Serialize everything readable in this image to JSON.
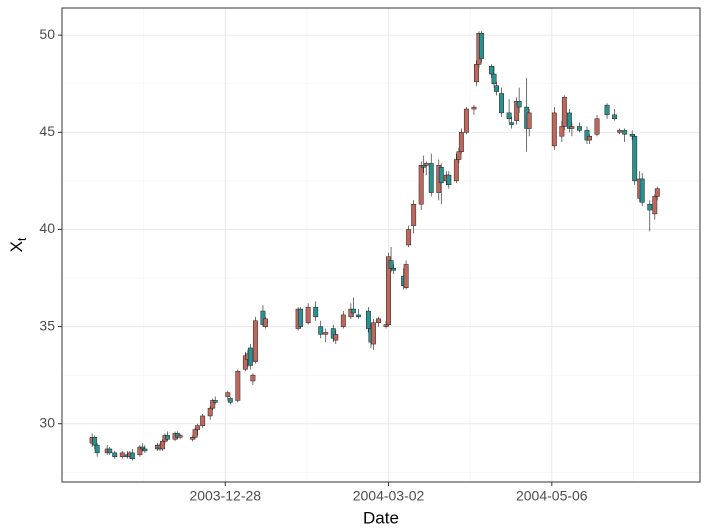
{
  "chart_data": {
    "type": "candlestick",
    "xlabel": "Date",
    "ylabel": "X",
    "ylabel_sub": "t",
    "up_color": "#c0675c",
    "down_color": "#2b9090",
    "grid": true,
    "xlim": [
      "2003-10-24",
      "2004-07-04"
    ],
    "xticks": [
      "2003-12-28",
      "2004-03-02",
      "2004-05-06"
    ],
    "ylim": [
      27.0,
      51.4
    ],
    "yticks": [
      30,
      35,
      40,
      45,
      50
    ],
    "x": [
      "2003-11-05",
      "2003-11-06",
      "2003-11-07",
      "2003-11-11",
      "2003-11-12",
      "2003-11-14",
      "2003-11-17",
      "2003-11-19",
      "2003-11-20",
      "2003-11-21",
      "2003-11-24",
      "2003-11-25",
      "2003-11-26",
      "2003-12-01",
      "2003-12-02",
      "2003-12-03",
      "2003-12-04",
      "2003-12-05",
      "2003-12-08",
      "2003-12-09",
      "2003-12-10",
      "2003-12-15",
      "2003-12-16",
      "2003-12-17",
      "2003-12-19",
      "2003-12-22",
      "2003-12-23",
      "2003-12-24",
      "2003-12-29",
      "2003-12-30",
      "2004-01-02",
      "2004-01-05",
      "2004-01-06",
      "2004-01-07",
      "2004-01-08",
      "2004-01-09",
      "2004-01-12",
      "2004-01-13",
      "2004-01-26",
      "2004-01-27",
      "2004-01-30",
      "2004-02-02",
      "2004-02-04",
      "2004-02-06",
      "2004-02-09",
      "2004-02-10",
      "2004-02-13",
      "2004-02-16",
      "2004-02-17",
      "2004-02-19",
      "2004-02-23",
      "2004-02-24",
      "2004-02-25",
      "2004-02-27",
      "2004-03-01",
      "2004-03-02",
      "2004-03-03",
      "2004-03-04",
      "2004-03-08",
      "2004-03-09",
      "2004-03-10",
      "2004-03-12",
      "2004-03-15",
      "2004-03-16",
      "2004-03-17",
      "2004-03-19",
      "2004-03-22",
      "2004-03-23",
      "2004-03-25",
      "2004-03-26",
      "2004-03-29",
      "2004-03-30",
      "2004-03-31",
      "2004-04-02",
      "2004-04-05",
      "2004-04-06",
      "2004-04-07",
      "2004-04-08",
      "2004-04-12",
      "2004-04-13",
      "2004-04-14",
      "2004-04-16",
      "2004-04-19",
      "2004-04-20",
      "2004-04-22",
      "2004-04-23",
      "2004-04-26",
      "2004-04-27",
      "2004-05-07",
      "2004-05-10",
      "2004-05-11",
      "2004-05-13",
      "2004-05-14",
      "2004-05-17",
      "2004-05-20",
      "2004-05-21",
      "2004-05-24",
      "2004-05-28",
      "2004-05-31",
      "2004-06-02",
      "2004-06-04",
      "2004-06-07",
      "2004-06-08",
      "2004-06-10",
      "2004-06-11",
      "2004-06-14",
      "2004-06-16",
      "2004-06-17"
    ],
    "open": [
      29.0,
      29.3,
      28.9,
      28.5,
      28.7,
      28.5,
      28.3,
      28.4,
      28.3,
      28.5,
      28.4,
      28.8,
      28.7,
      28.7,
      28.9,
      28.7,
      29.1,
      29.4,
      29.2,
      29.5,
      29.3,
      29.2,
      29.3,
      29.7,
      29.9,
      30.4,
      30.8,
      31.2,
      31.4,
      31.3,
      31.2,
      32.8,
      33.3,
      33.9,
      32.2,
      33.2,
      35.8,
      35.0,
      34.9,
      35.9,
      35.2,
      36.0,
      35.0,
      34.6,
      34.9,
      34.3,
      35.0,
      35.5,
      35.9,
      35.6,
      35.8,
      34.9,
      34.1,
      35.2,
      35.0,
      35.1,
      38.4,
      38.0,
      37.6,
      37.0,
      39.2,
      40.2,
      41.3,
      43.3,
      43.3,
      43.4,
      41.9,
      43.2,
      42.5,
      42.8,
      42.5,
      43.6,
      44.0,
      45.0,
      46.2,
      47.6,
      48.5,
      50.1,
      48.4,
      48.0,
      47.4,
      47.0,
      46.0,
      45.5,
      45.6,
      46.6,
      46.3,
      45.2,
      44.3,
      44.8,
      45.3,
      46.0,
      45.2,
      45.3,
      45.1,
      44.6,
      44.9,
      46.4,
      45.9,
      45.0,
      45.1,
      44.9,
      44.8,
      41.6,
      42.6,
      41.3,
      40.8,
      41.7
    ],
    "high": [
      29.5,
      29.4,
      29.0,
      28.9,
      28.8,
      28.6,
      28.6,
      28.6,
      28.6,
      28.7,
      28.9,
      29.0,
      28.9,
      29.0,
      29.0,
      29.2,
      29.5,
      29.6,
      29.6,
      29.6,
      29.5,
      29.4,
      29.8,
      30.0,
      30.5,
      30.9,
      31.3,
      31.4,
      31.7,
      31.4,
      32.8,
      33.7,
      33.8,
      34.1,
      32.6,
      35.5,
      36.1,
      35.5,
      36.0,
      36.0,
      36.2,
      36.3,
      35.3,
      34.9,
      35.1,
      34.8,
      35.8,
      36.2,
      36.5,
      35.9,
      36.0,
      35.1,
      35.4,
      35.5,
      35.3,
      38.8,
      39.1,
      38.2,
      38.0,
      38.4,
      40.2,
      41.5,
      43.5,
      43.8,
      43.5,
      43.9,
      43.6,
      43.4,
      43.0,
      43.0,
      43.9,
      44.2,
      45.2,
      46.3,
      46.4,
      48.7,
      50.2,
      50.2,
      48.5,
      48.4,
      47.6,
      47.3,
      46.7,
      45.8,
      46.8,
      47.3,
      47.8,
      46.2,
      46.3,
      45.6,
      46.9,
      46.2,
      45.5,
      45.5,
      45.3,
      44.9,
      45.9,
      46.5,
      46.2,
      45.2,
      45.2,
      45.1,
      44.9,
      43.0,
      42.9,
      41.5,
      41.8,
      42.2
    ],
    "low": [
      28.8,
      28.7,
      28.3,
      28.4,
      28.4,
      28.2,
      28.2,
      28.2,
      28.2,
      28.1,
      28.3,
      28.6,
      28.5,
      28.6,
      28.6,
      28.6,
      29.0,
      29.1,
      29.1,
      29.2,
      29.2,
      29.1,
      29.2,
      29.4,
      29.8,
      30.2,
      30.7,
      31.0,
      31.2,
      31.0,
      31.1,
      32.7,
      32.9,
      32.8,
      32.0,
      33.1,
      35.0,
      34.9,
      34.8,
      34.9,
      35.1,
      35.3,
      34.4,
      34.2,
      34.2,
      34.1,
      34.9,
      35.4,
      35.5,
      35.4,
      34.7,
      33.9,
      33.8,
      35.0,
      34.9,
      35.0,
      37.8,
      37.7,
      36.9,
      36.9,
      39.1,
      39.8,
      41.0,
      42.9,
      42.8,
      41.7,
      41.5,
      41.3,
      42.3,
      42.1,
      42.4,
      43.4,
      43.9,
      44.9,
      45.9,
      47.4,
      48.3,
      48.6,
      47.8,
      47.3,
      46.9,
      45.8,
      45.5,
      45.2,
      45.4,
      46.0,
      44.0,
      44.8,
      44.1,
      44.5,
      45.1,
      45.0,
      44.8,
      45.0,
      44.4,
      44.4,
      44.8,
      45.7,
      45.6,
      44.9,
      44.5,
      44.6,
      42.3,
      41.4,
      41.2,
      39.9,
      40.5,
      41.5
    ],
    "close": [
      29.3,
      28.9,
      28.5,
      28.7,
      28.5,
      28.3,
      28.5,
      28.3,
      28.5,
      28.2,
      28.8,
      28.7,
      28.6,
      28.9,
      28.7,
      29.1,
      29.4,
      29.2,
      29.5,
      29.3,
      29.4,
      29.3,
      29.7,
      29.9,
      30.4,
      30.8,
      31.2,
      31.1,
      31.6,
      31.1,
      32.7,
      33.5,
      33.6,
      33.0,
      32.5,
      35.3,
      35.1,
      35.4,
      35.9,
      35.0,
      36.0,
      35.5,
      34.6,
      34.7,
      34.4,
      34.6,
      35.6,
      35.9,
      35.7,
      35.5,
      34.9,
      34.2,
      35.2,
      35.4,
      35.1,
      38.6,
      38.0,
      37.9,
      37.1,
      38.2,
      40.0,
      41.3,
      43.3,
      43.2,
      43.4,
      41.9,
      43.3,
      42.4,
      42.8,
      42.3,
      43.6,
      44.0,
      45.0,
      46.2,
      46.3,
      48.5,
      50.1,
      48.8,
      48.0,
      47.5,
      47.1,
      46.0,
      45.7,
      45.4,
      46.6,
      46.3,
      45.2,
      46.0,
      46.0,
      45.3,
      46.8,
      45.2,
      45.3,
      45.1,
      44.6,
      44.8,
      45.7,
      45.9,
      45.7,
      45.1,
      44.9,
      44.8,
      42.5,
      42.6,
      41.4,
      41.0,
      41.7,
      42.1
    ]
  }
}
